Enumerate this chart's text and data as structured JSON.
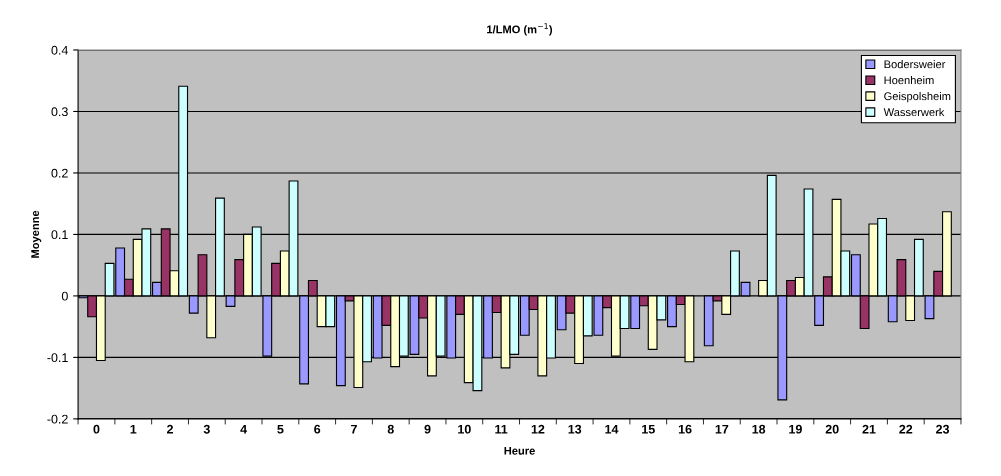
{
  "chart_data": {
    "type": "bar",
    "title": "1/LMO (m$^{−1}$)",
    "xlabel": "Heure",
    "ylabel": "Moyenne",
    "categories": [
      "0",
      "1",
      "2",
      "3",
      "4",
      "5",
      "6",
      "7",
      "8",
      "9",
      "10",
      "11",
      "12",
      "13",
      "14",
      "15",
      "16",
      "17",
      "18",
      "19",
      "20",
      "21",
      "22",
      "23"
    ],
    "series": [
      {
        "name": "Bodersweier",
        "color": "#9999ff",
        "values": [
          -0.003,
          0.078,
          0.022,
          -0.028,
          -0.017,
          -0.098,
          -0.143,
          -0.146,
          -0.101,
          -0.095,
          -0.101,
          -0.101,
          -0.064,
          -0.055,
          -0.064,
          -0.053,
          -0.05,
          -0.081,
          0.022,
          -0.169,
          -0.048,
          0.067,
          -0.042,
          -0.037
        ]
      },
      {
        "name": "Hoenheim",
        "color": "#993366",
        "values": [
          -0.034,
          0.027,
          0.109,
          0.067,
          0.059,
          0.053,
          0.025,
          -0.008,
          -0.048,
          -0.036,
          -0.03,
          -0.027,
          -0.022,
          -0.028,
          -0.019,
          -0.016,
          -0.014,
          -0.008,
          null,
          0.025,
          0.031,
          -0.053,
          0.059,
          0.04
        ]
      },
      {
        "name": "Geispolsheim",
        "color": "#ffffcc",
        "values": [
          -0.105,
          0.092,
          0.041,
          -0.068,
          0.1,
          0.073,
          -0.05,
          -0.149,
          -0.115,
          -0.13,
          -0.141,
          -0.117,
          -0.13,
          -0.11,
          -0.098,
          -0.087,
          -0.107,
          -0.03,
          0.025,
          0.03,
          0.157,
          0.117,
          -0.04,
          0.137
        ]
      },
      {
        "name": "Wasserwerk",
        "color": "#ccffff",
        "values": [
          0.053,
          0.109,
          0.341,
          0.159,
          0.112,
          0.187,
          -0.05,
          -0.107,
          -0.098,
          -0.098,
          -0.154,
          -0.095,
          -0.101,
          -0.065,
          -0.053,
          -0.039,
          null,
          0.073,
          0.196,
          0.174,
          0.073,
          0.126,
          0.092,
          null
        ]
      }
    ],
    "ylim": [
      -0.2,
      0.4
    ],
    "yticks": [
      {
        "value": -0.2,
        "label": "-0.2"
      },
      {
        "value": -0.1,
        "label": "-0.1"
      },
      0,
      0.1,
      0.2,
      0.3,
      0.4
    ],
    "grid": "y",
    "legend": "top right"
  }
}
